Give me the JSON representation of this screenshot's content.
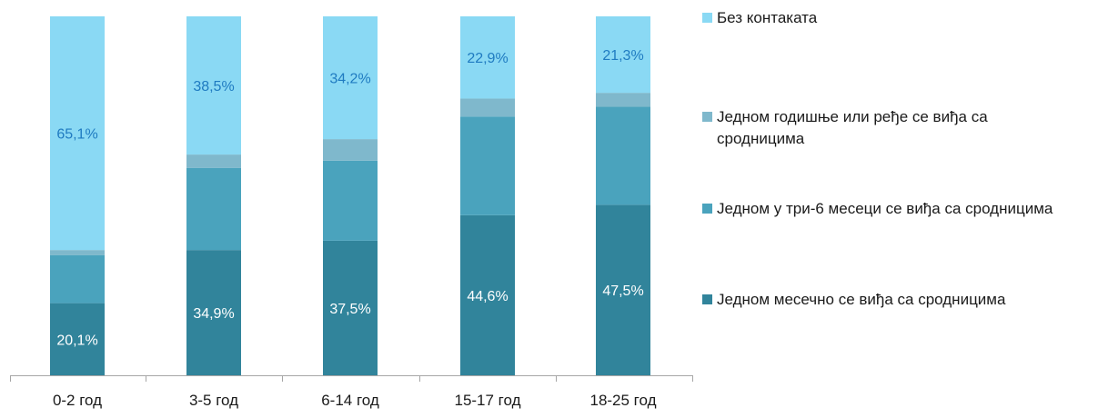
{
  "chart_data": {
    "type": "bar",
    "stacked": true,
    "normalized": true,
    "categories": [
      "0-2 год",
      "3-5 год",
      "6-14 год",
      "15-17 год",
      "18-25 год"
    ],
    "series": [
      {
        "name": "Једном месечно се виђа са сродницима",
        "color": "#31849b",
        "values": [
          20.1,
          34.9,
          37.5,
          44.6,
          47.5
        ],
        "labels": [
          "20,1%",
          "34,9%",
          "37,5%",
          "44,6%",
          "47,5%"
        ],
        "label_color": "#ffffff"
      },
      {
        "name": "Једном у три-6  месеци се виђа са сродницима",
        "color": "#4aa3bd",
        "values": [
          13.4,
          22.9,
          22.3,
          27.5,
          27.3
        ],
        "labels": [],
        "label_color": "#ffffff"
      },
      {
        "name": "Једном годишње или ређе се виђа са сродницима",
        "color": "#7fb8cc",
        "values": [
          1.4,
          3.7,
          6.0,
          5.0,
          3.9
        ],
        "labels": [],
        "label_color": "#ffffff"
      },
      {
        "name": "Без контаката",
        "color": "#8ad9f4",
        "values": [
          65.1,
          38.5,
          34.2,
          22.9,
          21.3
        ],
        "labels": [
          "65,1%",
          "38,5%",
          "34,2%",
          "22,9%",
          "21,3%"
        ],
        "label_color": "#1f7bc1"
      }
    ],
    "ylim": [
      0,
      100
    ],
    "legend_position": "right",
    "legend_order": "top-to-bottom reversed series",
    "grid": false,
    "axis_color": "#a6a6a6"
  }
}
